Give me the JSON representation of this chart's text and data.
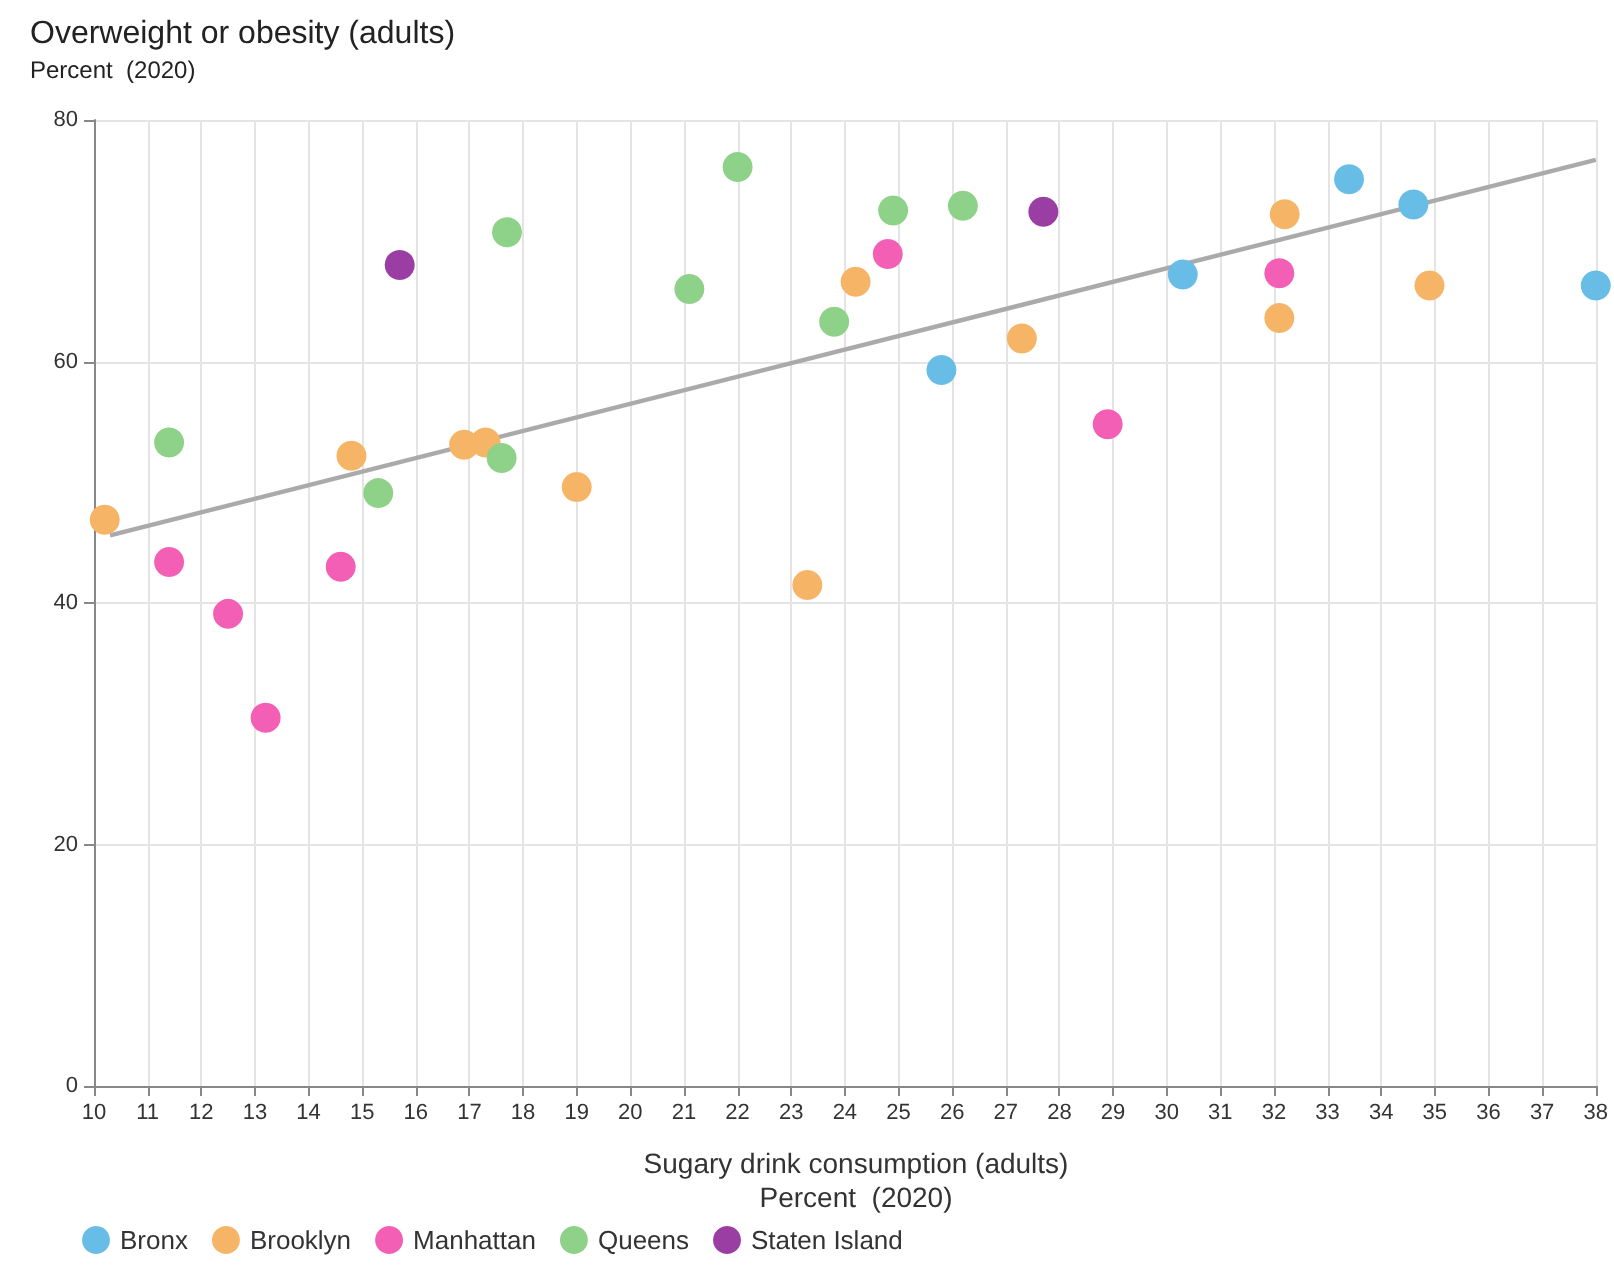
{
  "chart_data": {
    "type": "scatter",
    "title": "Overweight or obesity (adults)",
    "subtitle": "Percent  (2020)",
    "xlabel": "Sugary drink consumption (adults)\nPercent  (2020)",
    "xlim": [
      10,
      38
    ],
    "xticks": [
      10,
      11,
      12,
      13,
      14,
      15,
      16,
      17,
      18,
      19,
      20,
      21,
      22,
      23,
      24,
      25,
      26,
      27,
      28,
      29,
      30,
      31,
      32,
      33,
      34,
      35,
      36,
      37,
      38
    ],
    "ylim": [
      0,
      80
    ],
    "yticks": [
      0,
      20,
      40,
      60,
      80
    ],
    "grid": true,
    "legend": "bottom left",
    "marker": "circle",
    "series": [
      {
        "name": "Bronx",
        "color": "#68bde6",
        "x": [
          25.8,
          30.3,
          33.4,
          34.6,
          38.0
        ],
        "values": [
          59.3,
          67.2,
          75.1,
          73.0,
          66.3
        ]
      },
      {
        "name": "Brooklyn",
        "color": "#f6b566",
        "x": [
          10.2,
          14.8,
          16.9,
          17.3,
          19.0,
          23.3,
          24.2,
          27.3,
          32.2,
          32.1,
          34.9
        ],
        "values": [
          46.9,
          52.2,
          53.1,
          53.3,
          49.6,
          41.5,
          66.6,
          61.9,
          72.2,
          63.6,
          66.3
        ]
      },
      {
        "name": "Manhattan",
        "color": "#f35fb4",
        "x": [
          11.4,
          12.5,
          13.2,
          14.6,
          24.8,
          28.9,
          32.1
        ],
        "values": [
          43.4,
          39.1,
          30.5,
          43.0,
          68.9,
          54.8,
          67.3
        ]
      },
      {
        "name": "Queens",
        "color": "#8ed188",
        "x": [
          11.4,
          15.3,
          17.7,
          17.6,
          21.1,
          22.0,
          23.8,
          24.9,
          26.2
        ],
        "values": [
          53.3,
          49.1,
          70.7,
          52.0,
          66.0,
          76.1,
          63.3,
          72.5,
          72.9
        ]
      },
      {
        "name": "Staten Island",
        "color": "#9a3ea3",
        "x": [
          15.7,
          27.7
        ],
        "values": [
          68.0,
          72.4
        ]
      },
      {
        "type": "line",
        "color": "#aaaaaa",
        "marker": "none",
        "x": [
          10.3,
          38
        ],
        "values": [
          45.6,
          76.7
        ]
      }
    ]
  }
}
